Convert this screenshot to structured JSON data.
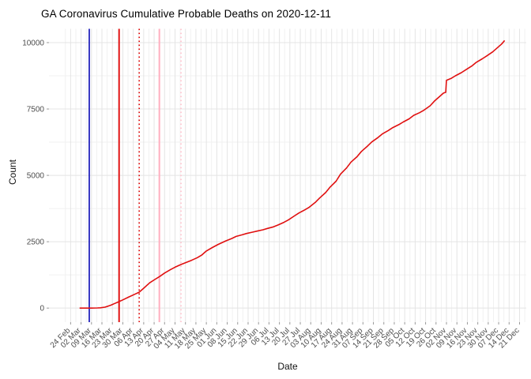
{
  "title": "GA Coronavirus Cumulative Probable Deaths on 2020-12-11",
  "chart_data": {
    "type": "line",
    "title": "GA Coronavirus Cumulative Probable Deaths on 2020-12-11",
    "xlabel": "Date",
    "ylabel": "Count",
    "legend_position": "none",
    "grid": {
      "on": true,
      "major": "#e4e4e4",
      "minor": "#f1f1f1"
    },
    "y_ticks": [
      0,
      2500,
      5000,
      7500,
      10000
    ],
    "y_tick_labels": [
      "0",
      "2500",
      "5000",
      "7500",
      "10000"
    ],
    "x_tick_interval_days": 7,
    "x_tick_labels": [
      "24 Feb",
      "02 Mar",
      "09 Mar",
      "16 Mar",
      "23 Mar",
      "30 Mar",
      "06 Apr",
      "13 Apr",
      "20 Apr",
      "27 Apr",
      "04 May",
      "11 May",
      "18 May",
      "25 May",
      "01 Jun",
      "08 Jun",
      "15 Jun",
      "22 Jun",
      "29 Jun",
      "06 Jul",
      "13 Jul",
      "20 Jul",
      "27 Jul",
      "03 Aug",
      "10 Aug",
      "17 Aug",
      "24 Aug",
      "31 Aug",
      "07 Sep",
      "14 Sep",
      "21 Sep",
      "28 Sep",
      "05 Oct",
      "12 Oct",
      "19 Oct",
      "26 Oct",
      "02 Nov",
      "09 Nov",
      "16 Nov",
      "23 Nov",
      "30 Nov",
      "07 Dec",
      "14 Dec",
      "21 Dec"
    ],
    "x_domain_days": [
      -14.5,
      305.5
    ],
    "y_domain": [
      -530,
      10520
    ],
    "axis_text_color": "#4d4d4d",
    "tick_mark_color": "#999999",
    "vlines": [
      {
        "name": "vline-blue-solid",
        "day": 12.5,
        "color": "#2323bd",
        "style": "solid",
        "width": 1.8
      },
      {
        "name": "vline-red-solid",
        "day": 32.5,
        "color": "#e00000",
        "style": "solid",
        "width": 1.8
      },
      {
        "name": "vline-red-dotted",
        "day": 46.0,
        "color": "#e00000",
        "style": "dotted",
        "width": 1.6
      },
      {
        "name": "vline-pink-solid",
        "day": 59.5,
        "color": "#ffafc0",
        "style": "solid",
        "width": 2.0
      },
      {
        "name": "vline-pink-dotted",
        "day": 74.0,
        "color": "#ffc6d0",
        "style": "dotted",
        "width": 1.8
      }
    ],
    "series": [
      {
        "name": "cumulative-probable-deaths",
        "color": "#e01010",
        "width": 1.6,
        "points_day_count": [
          [
            6,
            0
          ],
          [
            14,
            0
          ],
          [
            18,
            5
          ],
          [
            20,
            10
          ],
          [
            23,
            35
          ],
          [
            25,
            70
          ],
          [
            27,
            110
          ],
          [
            29,
            160
          ],
          [
            32,
            230
          ],
          [
            35,
            310
          ],
          [
            39,
            420
          ],
          [
            43,
            520
          ],
          [
            46,
            600
          ],
          [
            49,
            750
          ],
          [
            53,
            950
          ],
          [
            56,
            1060
          ],
          [
            60,
            1200
          ],
          [
            63,
            1320
          ],
          [
            67,
            1450
          ],
          [
            70,
            1540
          ],
          [
            74,
            1640
          ],
          [
            78,
            1730
          ],
          [
            81,
            1800
          ],
          [
            85,
            1900
          ],
          [
            88,
            2000
          ],
          [
            91,
            2150
          ],
          [
            95,
            2280
          ],
          [
            99,
            2400
          ],
          [
            104,
            2530
          ],
          [
            108,
            2620
          ],
          [
            111,
            2700
          ],
          [
            115,
            2760
          ],
          [
            118,
            2810
          ],
          [
            122,
            2860
          ],
          [
            125,
            2900
          ],
          [
            129,
            2950
          ],
          [
            132,
            3000
          ],
          [
            136,
            3060
          ],
          [
            139,
            3130
          ],
          [
            143,
            3230
          ],
          [
            146,
            3320
          ],
          [
            150,
            3470
          ],
          [
            153,
            3580
          ],
          [
            157,
            3700
          ],
          [
            160,
            3800
          ],
          [
            164,
            3980
          ],
          [
            167,
            4150
          ],
          [
            171,
            4350
          ],
          [
            174,
            4560
          ],
          [
            178,
            4780
          ],
          [
            181,
            5050
          ],
          [
            185,
            5280
          ],
          [
            188,
            5500
          ],
          [
            192,
            5700
          ],
          [
            195,
            5900
          ],
          [
            199,
            6100
          ],
          [
            202,
            6260
          ],
          [
            206,
            6420
          ],
          [
            209,
            6560
          ],
          [
            213,
            6690
          ],
          [
            216,
            6800
          ],
          [
            220,
            6910
          ],
          [
            223,
            7010
          ],
          [
            227,
            7130
          ],
          [
            230,
            7260
          ],
          [
            234,
            7360
          ],
          [
            237,
            7460
          ],
          [
            241,
            7620
          ],
          [
            244,
            7800
          ],
          [
            247,
            7950
          ],
          [
            250,
            8100
          ],
          [
            251.5,
            8130
          ],
          [
            252,
            8580
          ],
          [
            255,
            8650
          ],
          [
            258,
            8750
          ],
          [
            262,
            8870
          ],
          [
            265,
            8980
          ],
          [
            269,
            9120
          ],
          [
            272,
            9260
          ],
          [
            276,
            9390
          ],
          [
            279,
            9500
          ],
          [
            283,
            9650
          ],
          [
            286,
            9800
          ],
          [
            289,
            9950
          ],
          [
            291,
            10080
          ]
        ]
      }
    ]
  }
}
